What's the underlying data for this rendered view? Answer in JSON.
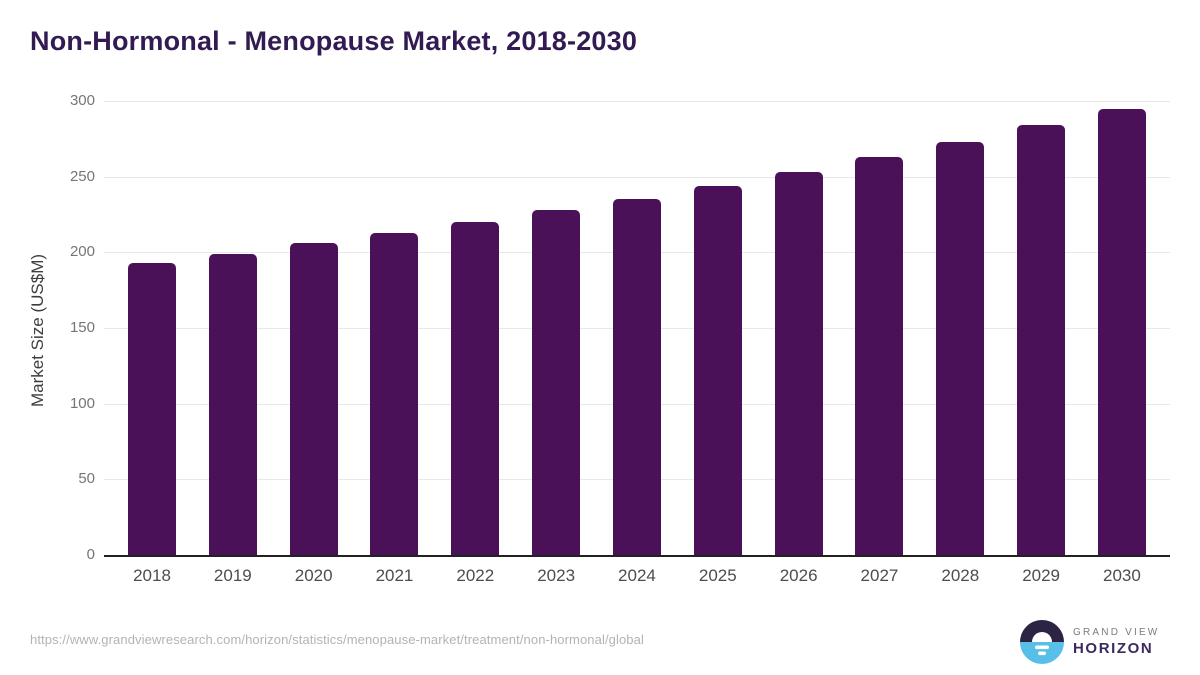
{
  "header": {
    "title": "Non-Hormonal - Menopause Market, 2018-2030"
  },
  "chart_data": {
    "type": "bar",
    "title": "Non-Hormonal - Menopause Market, 2018-2030",
    "categories": [
      "2018",
      "2019",
      "2020",
      "2021",
      "2022",
      "2023",
      "2024",
      "2025",
      "2026",
      "2027",
      "2028",
      "2029",
      "2030"
    ],
    "values": [
      193,
      199,
      206,
      213,
      220,
      228,
      235,
      244,
      253,
      263,
      273,
      284,
      295
    ],
    "xlabel": "",
    "ylabel": "Market Size (US$M)",
    "ylim": [
      0,
      300
    ],
    "yticks": [
      0,
      50,
      100,
      150,
      200,
      250,
      300
    ],
    "grid": "horizontal",
    "legend": "none",
    "bar_color": "#4a1159"
  },
  "footer": {
    "source_url": "https://www.grandviewresearch.com/horizon/statistics/menopause-market/treatment/non-hormonal/global",
    "logo": {
      "line1": "GRAND VIEW",
      "line2": "HORIZON"
    }
  },
  "colors": {
    "bar": "#4a1159",
    "title": "#321b52",
    "axis_line": "#212121",
    "gridline": "#e8e8e8",
    "y_tick_text": "#757575",
    "x_tick_text": "#4d4d4d",
    "y_title_text": "#3d3d3d",
    "source_text": "#b3b3b3",
    "logo_dark": "#2d2343",
    "logo_blue": "#58bfe9",
    "logo_gray": "#7d7a80",
    "logo_purple": "#3a2a5e"
  }
}
